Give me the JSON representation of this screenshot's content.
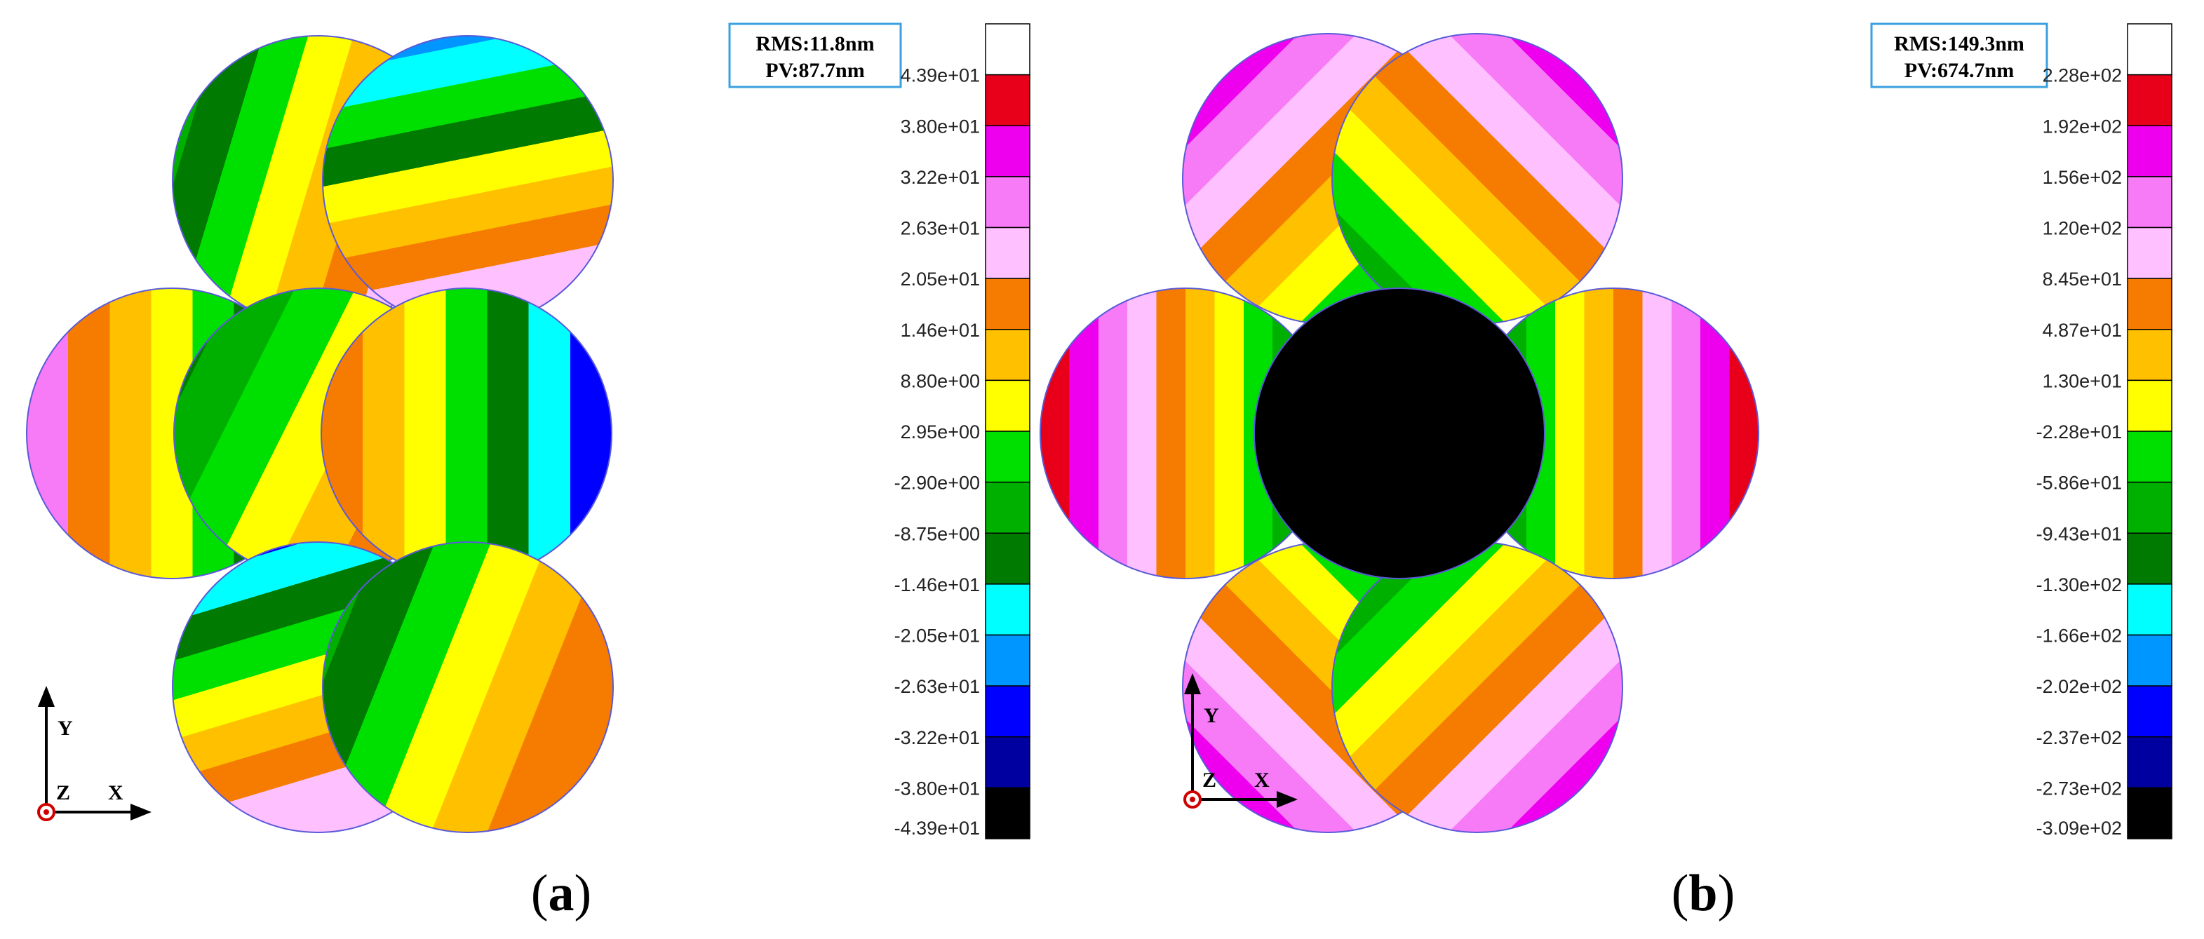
{
  "panels": [
    {
      "id": "a",
      "caption_letter": "a",
      "stats": {
        "rms": "RMS:11.8nm",
        "pv": "PV:87.7nm"
      },
      "axes": {
        "x": "X",
        "y": "Y",
        "z": "Z"
      },
      "colorbar": {
        "colors": [
          "#ffffff",
          "#e8001a",
          "#ee00ee",
          "#f77af7",
          "#ffc0ff",
          "#f57c00",
          "#ffc000",
          "#ffff00",
          "#00e000",
          "#00b000",
          "#007a00",
          "#00ffff",
          "#0096ff",
          "#0000ff",
          "#0000a0",
          "#000000"
        ],
        "labels": [
          "4.39e+01",
          "3.80e+01",
          "3.22e+01",
          "2.63e+01",
          "2.05e+01",
          "1.46e+01",
          "8.80e+00",
          "2.95e+00",
          "-2.90e+00",
          "-8.75e+00",
          "-1.46e+01",
          "-2.05e+01",
          "-2.63e+01",
          "-3.22e+01",
          "-3.80e+01",
          "-4.39e+01"
        ]
      },
      "center_filled": false
    },
    {
      "id": "b",
      "caption_letter": "b",
      "stats": {
        "rms": "RMS:149.3nm",
        "pv": "PV:674.7nm"
      },
      "axes": {
        "x": "X",
        "y": "Y",
        "z": "Z"
      },
      "colorbar": {
        "colors": [
          "#ffffff",
          "#e8001a",
          "#ee00ee",
          "#f77af7",
          "#ffc0ff",
          "#f57c00",
          "#ffc000",
          "#ffff00",
          "#00e000",
          "#00b000",
          "#007a00",
          "#00ffff",
          "#0096ff",
          "#0000ff",
          "#0000a0",
          "#000000"
        ],
        "labels": [
          "2.28e+02",
          "1.92e+02",
          "1.56e+02",
          "1.20e+02",
          "8.45e+01",
          "4.87e+01",
          "1.30e+01",
          "-2.28e+01",
          "-5.86e+01",
          "-9.43e+01",
          "-1.30e+02",
          "-1.66e+02",
          "-2.02e+02",
          "-2.37e+02",
          "-2.73e+02",
          "-3.09e+02"
        ]
      },
      "center_filled": true
    }
  ]
}
